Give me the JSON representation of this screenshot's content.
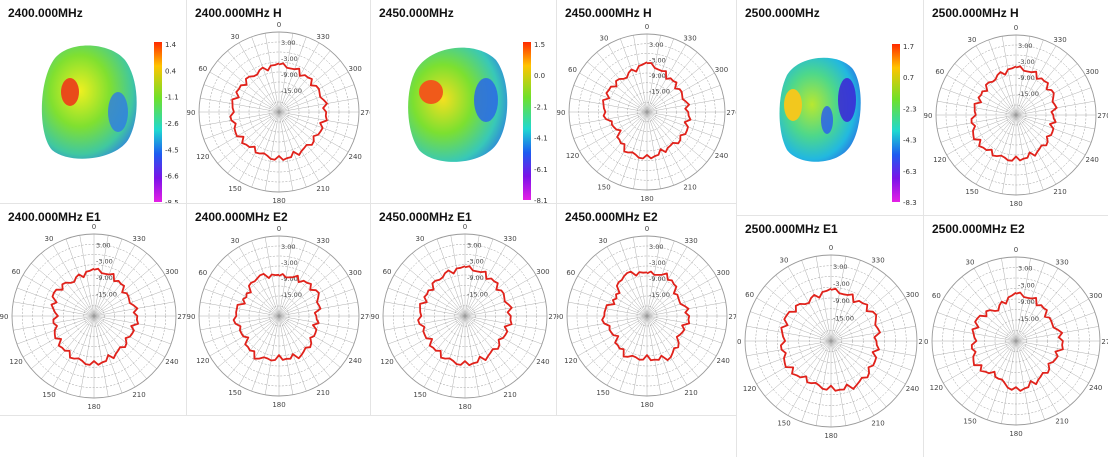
{
  "colors": {
    "pattern": "#e0221b",
    "grid": "#9a9a9a",
    "separator": "#e4e4e4"
  },
  "polar_ticks": {
    "angles": [
      "30",
      "60",
      "90",
      "120",
      "150",
      "180",
      "210",
      "240",
      "270",
      "300",
      "330",
      "0"
    ],
    "radials": [
      "3.00",
      "-3.00",
      "-9.00",
      "-15.00"
    ]
  },
  "panels": [
    {
      "id": "p2400-3d",
      "title": "2400.000MHz",
      "colorbar": [
        "1.4",
        "0.4",
        "-1.1",
        "-2.6",
        "-4.5",
        "-6.6",
        "-8.5"
      ]
    },
    {
      "id": "p2400-h",
      "title": "2400.000MHz  H"
    },
    {
      "id": "p2450-3d",
      "title": "2450.000MHz",
      "colorbar": [
        "1.5",
        "0.0",
        "-2.1",
        "-4.1",
        "-6.1",
        "-8.1"
      ]
    },
    {
      "id": "p2450-h",
      "title": "2450.000MHz  H"
    },
    {
      "id": "p2500-3d",
      "title": "2500.000MHz",
      "colorbar": [
        "1.7",
        "0.7",
        "-2.3",
        "-4.3",
        "-6.3",
        "-8.3"
      ]
    },
    {
      "id": "p2500-h",
      "title": "2500.000MHz  H"
    },
    {
      "id": "p2400-e1",
      "title": "2400.000MHz  E1"
    },
    {
      "id": "p2400-e2",
      "title": "2400.000MHz  E2"
    },
    {
      "id": "p2450-e1",
      "title": "2450.000MHz  E1"
    },
    {
      "id": "p2450-e2",
      "title": "2450.000MHz  E2"
    },
    {
      "id": "p2500-e1",
      "title": "2500.000MHz  E1"
    },
    {
      "id": "p2500-e2",
      "title": "2500.000MHz  E2"
    }
  ],
  "chart_data": [
    {
      "type": "polar",
      "name": "2400.000MHz  H",
      "angles_deg": [
        0,
        30,
        60,
        90,
        120,
        150,
        180,
        210,
        240,
        270,
        300,
        330
      ],
      "values": [
        0.95,
        0.9,
        0.92,
        0.95,
        0.95,
        0.9,
        0.95,
        0.9,
        0.9,
        0.95,
        0.9,
        0.9
      ]
    },
    {
      "type": "polar",
      "name": "2450.000MHz  H",
      "angles_deg": [
        0,
        30,
        60,
        90,
        120,
        150,
        180,
        210,
        240,
        270,
        300,
        330
      ],
      "values": [
        1.0,
        0.85,
        0.9,
        0.9,
        0.7,
        0.9,
        0.95,
        0.85,
        0.9,
        0.85,
        0.8,
        0.85
      ]
    },
    {
      "type": "polar",
      "name": "2500.000MHz  H",
      "angles_deg": [
        0,
        30,
        60,
        90,
        120,
        150,
        180,
        210,
        240,
        270,
        300,
        330
      ],
      "values": [
        0.95,
        0.85,
        0.8,
        0.85,
        0.95,
        0.9,
        0.9,
        0.85,
        0.8,
        0.75,
        0.85,
        0.9
      ]
    },
    {
      "type": "polar",
      "name": "2400.000MHz  E1",
      "angles_deg": [
        0,
        30,
        60,
        90,
        120,
        150,
        180,
        210,
        240,
        270,
        300,
        330
      ],
      "values": [
        0.9,
        0.8,
        0.9,
        0.75,
        0.85,
        0.9,
        0.95,
        0.85,
        0.8,
        0.85,
        0.75,
        0.85
      ]
    },
    {
      "type": "polar",
      "name": "2400.000MHz  E2",
      "angles_deg": [
        0,
        30,
        60,
        90,
        120,
        150,
        180,
        210,
        240,
        270,
        300,
        330
      ],
      "values": [
        0.8,
        0.9,
        0.75,
        0.9,
        0.8,
        0.95,
        0.85,
        0.9,
        0.8,
        0.75,
        0.9,
        0.85
      ]
    },
    {
      "type": "polar",
      "name": "2450.000MHz  E1",
      "angles_deg": [
        0,
        30,
        60,
        90,
        120,
        150,
        180,
        210,
        240,
        270,
        300,
        330
      ],
      "values": [
        0.95,
        0.9,
        0.85,
        0.9,
        0.85,
        0.9,
        0.95,
        0.9,
        0.85,
        0.9,
        0.85,
        0.9
      ]
    },
    {
      "type": "polar",
      "name": "2450.000MHz  E2",
      "angles_deg": [
        0,
        30,
        60,
        90,
        120,
        150,
        180,
        210,
        240,
        270,
        300,
        330
      ],
      "values": [
        0.85,
        0.95,
        0.7,
        0.9,
        0.75,
        0.9,
        0.85,
        0.95,
        0.75,
        0.85,
        0.7,
        0.9
      ]
    },
    {
      "type": "polar",
      "name": "2500.000MHz  E1",
      "angles_deg": [
        0,
        30,
        60,
        90,
        120,
        150,
        180,
        210,
        240,
        270,
        300,
        330
      ],
      "values": [
        0.95,
        0.85,
        0.95,
        0.9,
        0.95,
        0.85,
        0.9,
        0.95,
        0.9,
        0.85,
        0.95,
        0.9
      ]
    },
    {
      "type": "polar",
      "name": "2500.000MHz  E2",
      "angles_deg": [
        0,
        30,
        60,
        90,
        120,
        150,
        180,
        210,
        240,
        270,
        300,
        330
      ],
      "values": [
        0.9,
        0.7,
        0.85,
        0.8,
        0.9,
        0.75,
        0.95,
        0.85,
        0.8,
        0.9,
        0.75,
        0.85
      ]
    }
  ]
}
